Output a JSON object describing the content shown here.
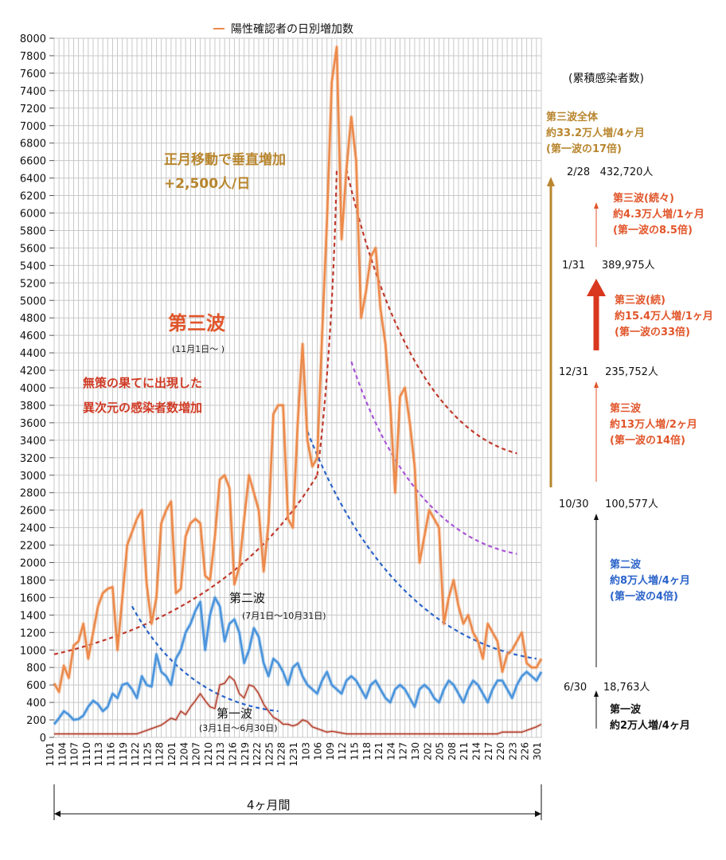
{
  "chart_data": {
    "type": "line",
    "legend": "陽性確認者の日別増加数",
    "ylim": [
      0,
      8000
    ],
    "y_ticks": [
      0,
      200,
      400,
      600,
      800,
      1000,
      1200,
      1400,
      1600,
      1800,
      2000,
      2200,
      2400,
      2600,
      2800,
      3000,
      3200,
      3400,
      3600,
      3800,
      4000,
      4200,
      4400,
      4600,
      4800,
      5000,
      5200,
      5400,
      5600,
      5800,
      6000,
      6200,
      6400,
      6600,
      6800,
      7000,
      7200,
      7400,
      7600,
      7800,
      8000
    ],
    "x_ticks": [
      "1101",
      "1104",
      "1107",
      "1110",
      "1113",
      "1116",
      "1119",
      "1122",
      "1125",
      "1128",
      "1201",
      "1204",
      "1207",
      "1210",
      "1213",
      "1216",
      "1219",
      "1222",
      "1225",
      "1228",
      "1231",
      "103",
      "106",
      "109",
      "112",
      "115",
      "118",
      "121",
      "124",
      "127",
      "130",
      "202",
      "205",
      "208",
      "211",
      "214",
      "217",
      "220",
      "223",
      "226",
      "301"
    ],
    "series": [
      {
        "name": "第三波",
        "color": "#ec8a4b",
        "values": [
          620,
          520,
          820,
          680,
          1050,
          1100,
          1300,
          900,
          1200,
          1500,
          1650,
          1700,
          1720,
          1000,
          1600,
          2200,
          2350,
          2500,
          2600,
          1750,
          1300,
          1600,
          2450,
          2600,
          2700,
          1650,
          1700,
          2300,
          2450,
          2500,
          2450,
          1850,
          1800,
          2300,
          2950,
          3000,
          2850,
          1750,
          1950,
          2500,
          3000,
          2800,
          2600,
          1900,
          2450,
          3700,
          3800,
          3800,
          2500,
          2400,
          3600,
          4500,
          3400,
          3100,
          3200,
          4600,
          5900,
          7500,
          7900,
          5700,
          6500,
          7100,
          6600,
          4800,
          5100,
          5500,
          5600,
          4900,
          4500,
          3800,
          2800,
          3900,
          4000,
          3600,
          3100,
          2000,
          2300,
          2600,
          2500,
          2400,
          1300,
          1600,
          1800,
          1500,
          1300,
          1400,
          1200,
          1100,
          900,
          1300,
          1200,
          1100,
          750,
          950,
          1000,
          1100,
          1200,
          850,
          800,
          800,
          900
        ]
      },
      {
        "name": "第二波",
        "color": "#4a94dc",
        "values": [
          150,
          220,
          300,
          260,
          200,
          210,
          250,
          350,
          420,
          380,
          300,
          350,
          500,
          450,
          600,
          620,
          550,
          450,
          700,
          600,
          580,
          950,
          750,
          700,
          600,
          900,
          1000,
          1200,
          1300,
          1450,
          1550,
          1000,
          1400,
          1600,
          1500,
          1100,
          1300,
          1350,
          1200,
          850,
          1000,
          1250,
          1150,
          850,
          700,
          900,
          850,
          750,
          600,
          800,
          850,
          700,
          600,
          550,
          500,
          650,
          750,
          600,
          550,
          500,
          650,
          700,
          650,
          550,
          450,
          600,
          650,
          550,
          450,
          400,
          550,
          600,
          550,
          450,
          350,
          550,
          600,
          550,
          450,
          400,
          550,
          650,
          600,
          500,
          400,
          550,
          650,
          600,
          500,
          400,
          550,
          650,
          650,
          550,
          450,
          600,
          700,
          750,
          700,
          650,
          750
        ]
      },
      {
        "name": "第一波",
        "color": "#b0341f",
        "values": [
          40,
          40,
          40,
          40,
          40,
          40,
          40,
          40,
          40,
          40,
          40,
          40,
          40,
          40,
          40,
          40,
          40,
          40,
          60,
          80,
          100,
          120,
          140,
          180,
          220,
          200,
          300,
          260,
          350,
          420,
          500,
          420,
          350,
          330,
          600,
          620,
          700,
          650,
          500,
          450,
          600,
          580,
          500,
          380,
          300,
          230,
          200,
          150,
          150,
          130,
          150,
          200,
          180,
          120,
          100,
          80,
          60,
          70,
          60,
          50,
          40,
          40,
          40,
          40,
          40,
          40,
          40,
          40,
          40,
          40,
          40,
          40,
          40,
          40,
          40,
          40,
          40,
          40,
          40,
          40,
          40,
          40,
          40,
          40,
          40,
          40,
          40,
          40,
          40,
          40,
          40,
          40,
          60,
          60,
          60,
          60,
          60,
          80,
          100,
          120,
          150
        ]
      }
    ],
    "trend_lines": [
      {
        "color": "#c0392b",
        "from": [
          0,
          950
        ],
        "to": [
          54,
          3000
        ],
        "note": "rise"
      },
      {
        "color": "#c0392b",
        "from": [
          54,
          3000
        ],
        "to": [
          58,
          6500
        ],
        "note": "rise2"
      },
      {
        "color": "#c0392b",
        "from": [
          60,
          6500
        ],
        "to": [
          95,
          3250
        ],
        "note": "decay"
      },
      {
        "color": "#a855d8",
        "from": [
          61,
          4300
        ],
        "to": [
          95,
          2100
        ],
        "note": "decay"
      },
      {
        "color": "#2a63c9",
        "from": [
          52,
          3500
        ],
        "to": [
          99,
          900
        ],
        "note": "decay"
      },
      {
        "color": "#2a63c9",
        "from": [
          16,
          1500
        ],
        "to": [
          46,
          300
        ],
        "note": "decay"
      }
    ]
  },
  "annotations": {
    "shogatsu_1": "正月移動で垂直増加",
    "shogatsu_2": "+2,500人/日",
    "daisanpa_title": "第三波",
    "daisanpa_sub": "(11月1日～ )",
    "musaku_1": "無策の果てに出現した",
    "musaku_2": "異次元の感染者数増加",
    "dainipa_title": "第二波",
    "dainipa_sub": "(7月1日～10月31日)",
    "daiippa_title": "第一波",
    "daiippa_sub": "(3月1日～6月30日)",
    "period": "4ヶ月間"
  },
  "right_panel": {
    "header": "(累積感染者数)",
    "third_all": [
      "第三波全体",
      "約33.2万人増/4ヶ月",
      "(第一波の17倍)"
    ],
    "cum": [
      {
        "date": "2/28",
        "value": "432,720人"
      },
      {
        "date": "1/31",
        "value": "389,975人"
      },
      {
        "date": "12/31",
        "value": "235,752人"
      },
      {
        "date": "10/30",
        "value": "100,577人"
      },
      {
        "date": "6/30",
        "value": "18,763人"
      }
    ],
    "third_cont2": [
      "第三波(続々)",
      "約4.3万人増/1ヶ月",
      "(第一波の8.5倍)"
    ],
    "third_cont": [
      "第三波(続)",
      "約15.4万人増/1ヶ月",
      "(第一波の33倍)"
    ],
    "third": [
      "第三波",
      "約13万人増/2ヶ月",
      "(第一波の14倍)"
    ],
    "second": [
      "第二波",
      "約8万人増/4ヶ月",
      "(第一波の4倍)"
    ],
    "first": [
      "第一波",
      "約2万人増/4ヶ月"
    ]
  }
}
